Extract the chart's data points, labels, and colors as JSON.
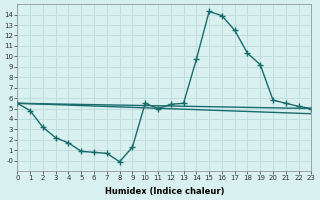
{
  "xlabel": "Humidex (Indice chaleur)",
  "bg_color": "#d8f0f0",
  "grid_color": "#c0dede",
  "line_color": "#1a6b6b",
  "line1_x": [
    0,
    1,
    2,
    3,
    4,
    5,
    6,
    7,
    8,
    9,
    10,
    11,
    12,
    13,
    14,
    15,
    16,
    17,
    18,
    19,
    20,
    21,
    22,
    23
  ],
  "line1_y": [
    5.5,
    4.8,
    3.2,
    2.2,
    1.7,
    0.9,
    0.8,
    0.7,
    -0.1,
    1.3,
    5.5,
    5.0,
    5.4,
    5.5,
    9.7,
    14.3,
    13.9,
    12.5,
    10.3,
    9.2,
    5.8,
    5.5,
    5.2,
    5.0
  ],
  "line2_x": [
    0,
    23
  ],
  "line2_y": [
    5.5,
    5.0
  ],
  "line3_x": [
    0,
    23
  ],
  "line3_y": [
    5.5,
    4.5
  ],
  "ylim": [
    -1,
    15
  ],
  "xlim": [
    0,
    23
  ],
  "ytick_vals": [
    14,
    13,
    12,
    11,
    10,
    9,
    8,
    7,
    6,
    5,
    4,
    3,
    2,
    1,
    0
  ],
  "ytick_labels": [
    "14",
    "13",
    "12",
    "11",
    "10",
    "9",
    "8",
    "7",
    "6",
    "5",
    "4",
    "3",
    "2",
    "1",
    "-0"
  ],
  "xtick_vals": [
    0,
    1,
    2,
    3,
    4,
    5,
    6,
    7,
    8,
    9,
    10,
    11,
    12,
    13,
    14,
    15,
    16,
    17,
    18,
    19,
    20,
    21,
    22,
    23
  ],
  "xtick_labels": [
    "0",
    "1",
    "2",
    "3",
    "4",
    "5",
    "6",
    "7",
    "8",
    "9",
    "10",
    "11",
    "12",
    "13",
    "14",
    "15",
    "16",
    "17",
    "18",
    "19",
    "20",
    "21",
    "22",
    "23"
  ]
}
